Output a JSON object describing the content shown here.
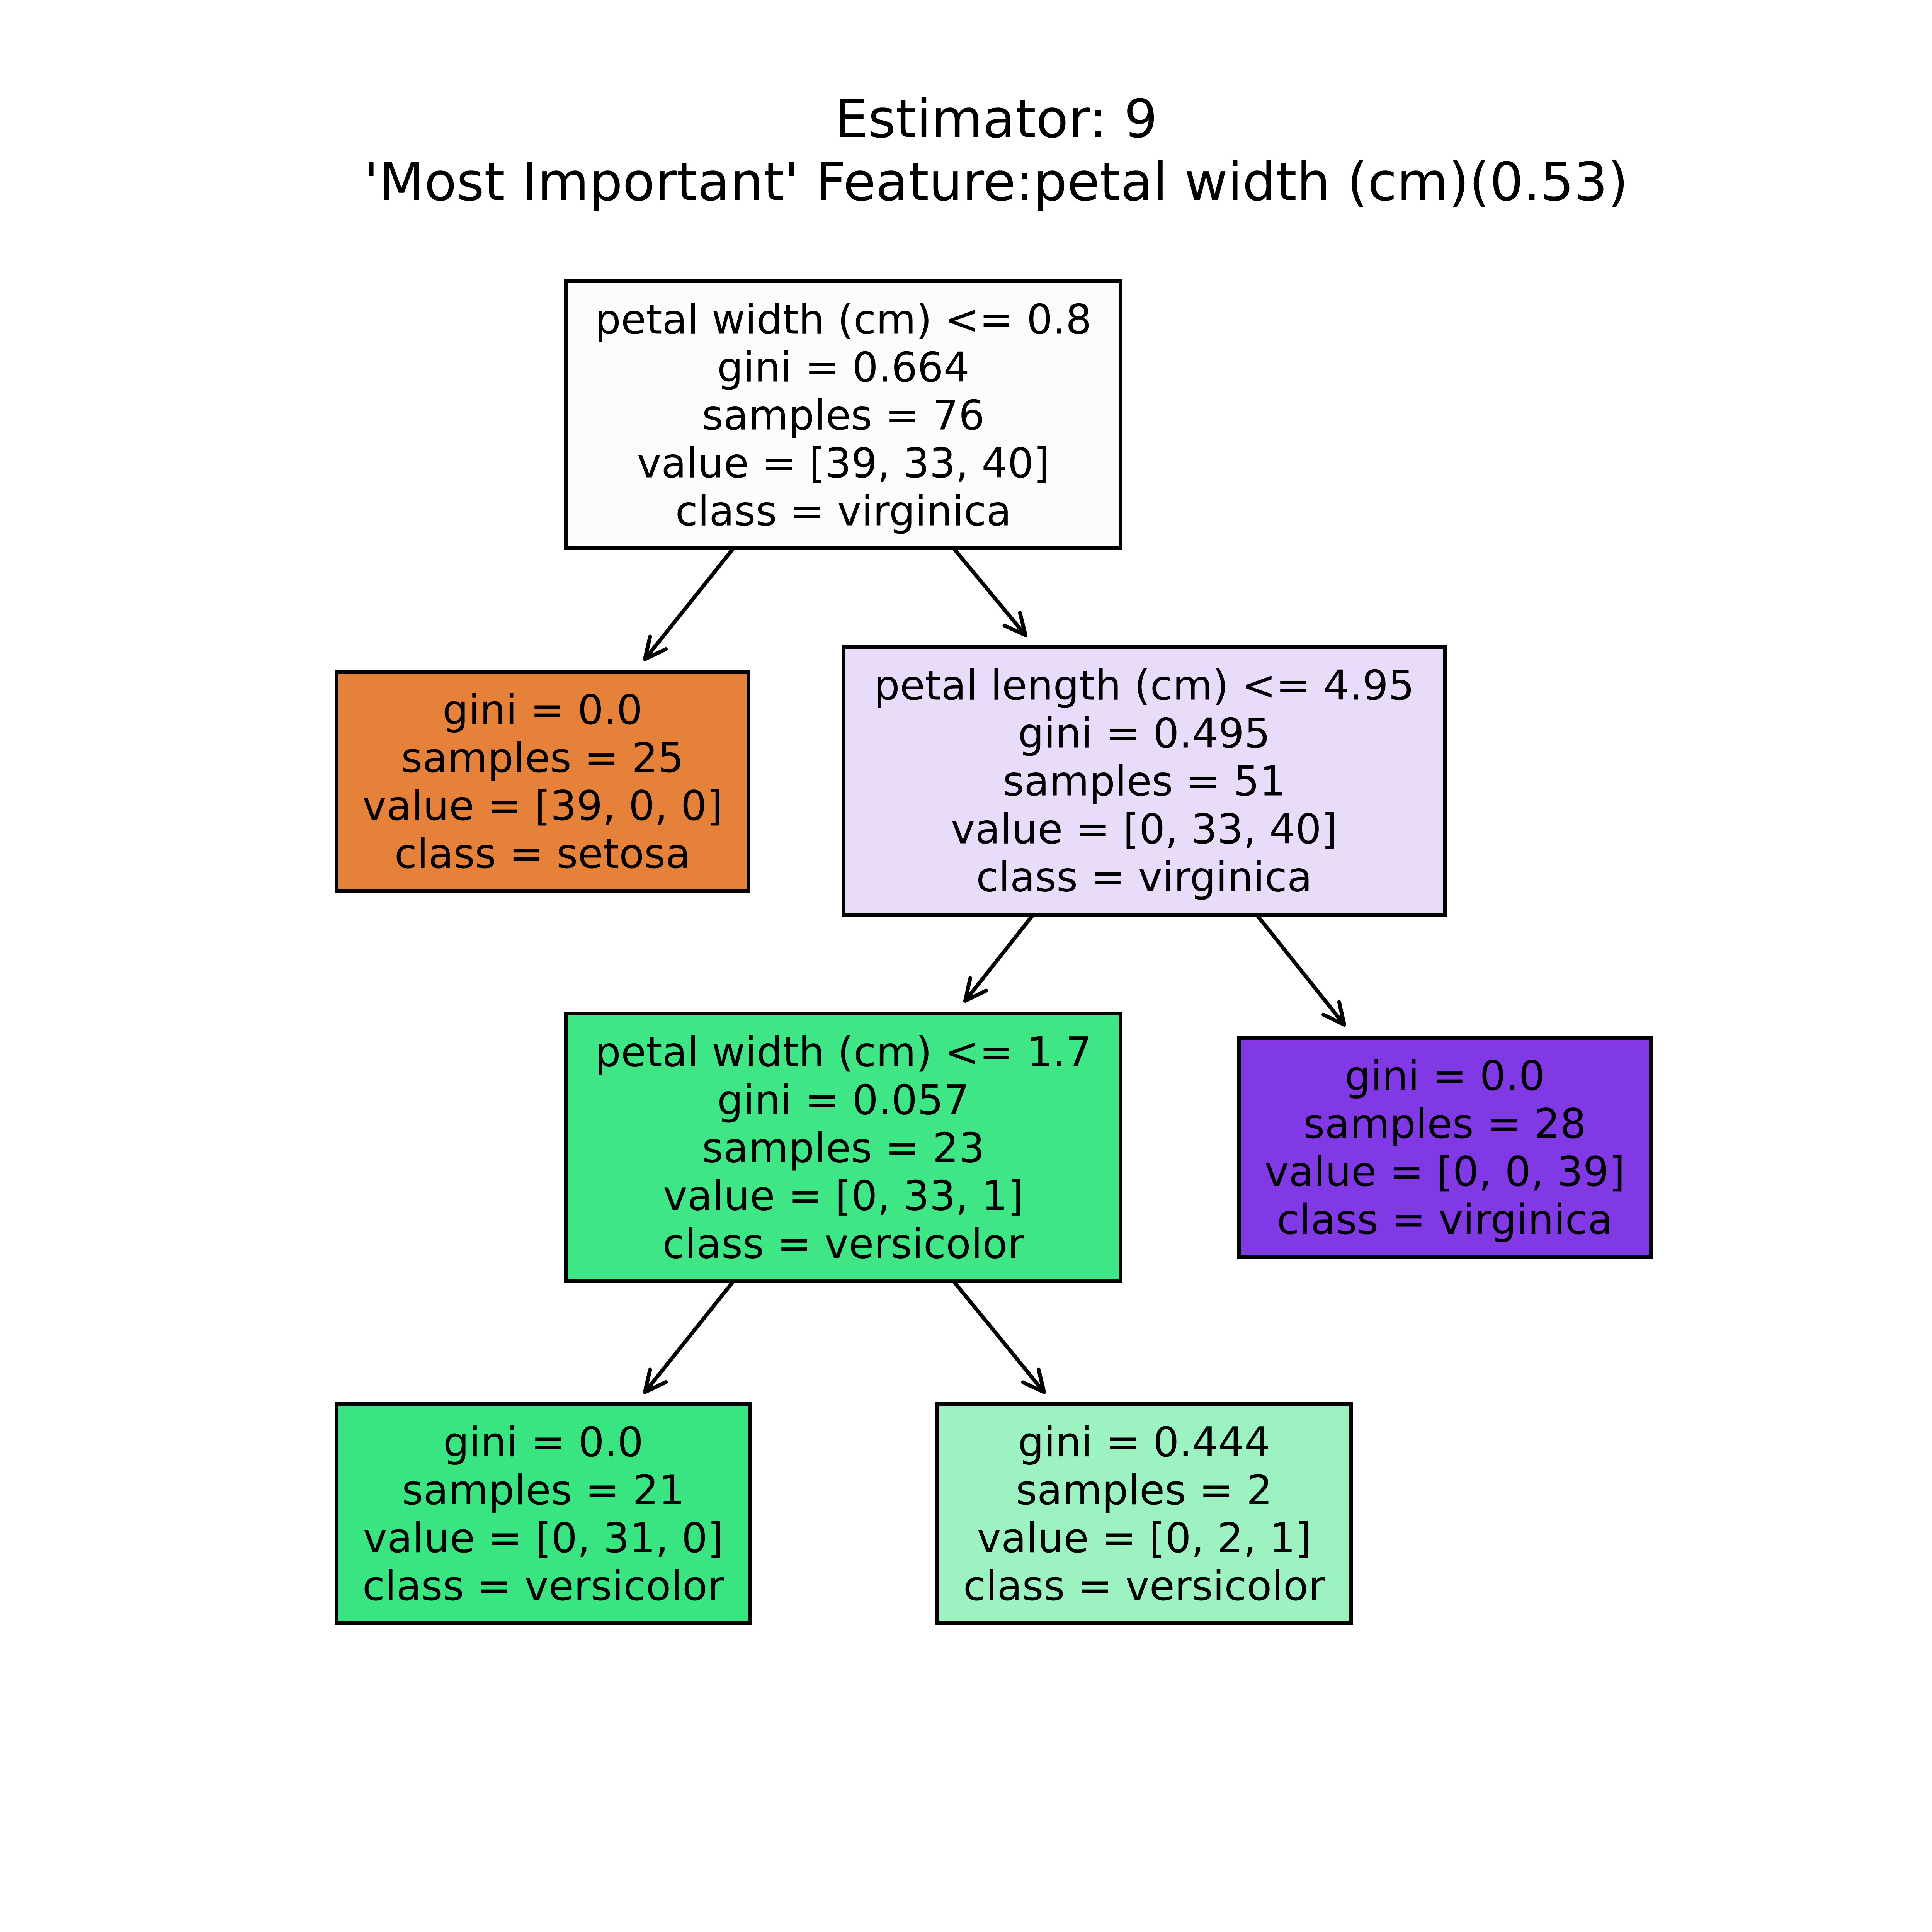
{
  "title": {
    "line1": "Estimator: 9",
    "line2": "'Most Important' Feature:petal width (cm)(0.53)"
  },
  "nodes": [
    {
      "id": "root",
      "lines": [
        "petal width (cm) <= 0.8",
        "gini = 0.664",
        "samples = 76",
        "value = [39, 33, 40]",
        "class = virginica"
      ],
      "fill": "#fcfbfe"
    },
    {
      "id": "setosa-leaf",
      "lines": [
        "gini = 0.0",
        "samples = 25",
        "value = [39, 0, 0]",
        "class = setosa"
      ],
      "fill": "#e58139"
    },
    {
      "id": "petal-length-split",
      "lines": [
        "petal length (cm) <= 4.95",
        "gini = 0.495",
        "samples = 51",
        "value = [0, 33, 40]",
        "class = virginica"
      ],
      "fill": "#e9dcfa"
    },
    {
      "id": "petal-width-split",
      "lines": [
        "petal width (cm) <= 1.7",
        "gini = 0.057",
        "samples = 23",
        "value = [0, 33, 1]",
        "class = versicolor"
      ],
      "fill": "#3fe685"
    },
    {
      "id": "virginica-leaf",
      "lines": [
        "gini = 0.0",
        "samples = 28",
        "value = [0, 0, 39]",
        "class = virginica"
      ],
      "fill": "#8139e5"
    },
    {
      "id": "versicolor-leaf-pure",
      "lines": [
        "gini = 0.0",
        "samples = 21",
        "value = [0, 31, 0]",
        "class = versicolor"
      ],
      "fill": "#39e581"
    },
    {
      "id": "versicolor-leaf-mixed",
      "lines": [
        "gini = 0.444",
        "samples = 2",
        "value = [0, 2, 1]",
        "class = versicolor"
      ],
      "fill": "#9cf2c0"
    }
  ],
  "edges": [
    {
      "from": "root",
      "to": "setosa-leaf"
    },
    {
      "from": "root",
      "to": "petal-length-split"
    },
    {
      "from": "petal-length-split",
      "to": "petal-width-split"
    },
    {
      "from": "petal-length-split",
      "to": "virginica-leaf"
    },
    {
      "from": "petal-width-split",
      "to": "versicolor-leaf-pure"
    },
    {
      "from": "petal-width-split",
      "to": "versicolor-leaf-mixed"
    }
  ]
}
